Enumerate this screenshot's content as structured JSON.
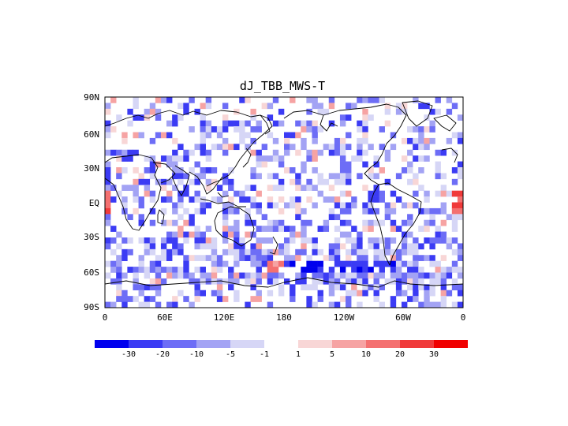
{
  "title": "dJ_TBB_MWS-T",
  "lat_labels": [
    "90N",
    "60N",
    "30N",
    "EQ",
    "30S",
    "60S",
    "90S"
  ],
  "lon_labels": [
    "0",
    "60E",
    "120E",
    "180",
    "120W",
    "60W",
    "0"
  ],
  "colorbar": {
    "colors": [
      "#0000ee",
      "#3b3bf4",
      "#6d6df6",
      "#a3a3f4",
      "#d6d6f6",
      "#ffffff",
      "#f8d6d6",
      "#f6a3a3",
      "#f47070",
      "#f03a3a",
      "#f00000"
    ],
    "labels": [
      "-30",
      "-20",
      "-10",
      "-5",
      "-1",
      "1",
      "5",
      "10",
      "20",
      "30"
    ]
  }
}
